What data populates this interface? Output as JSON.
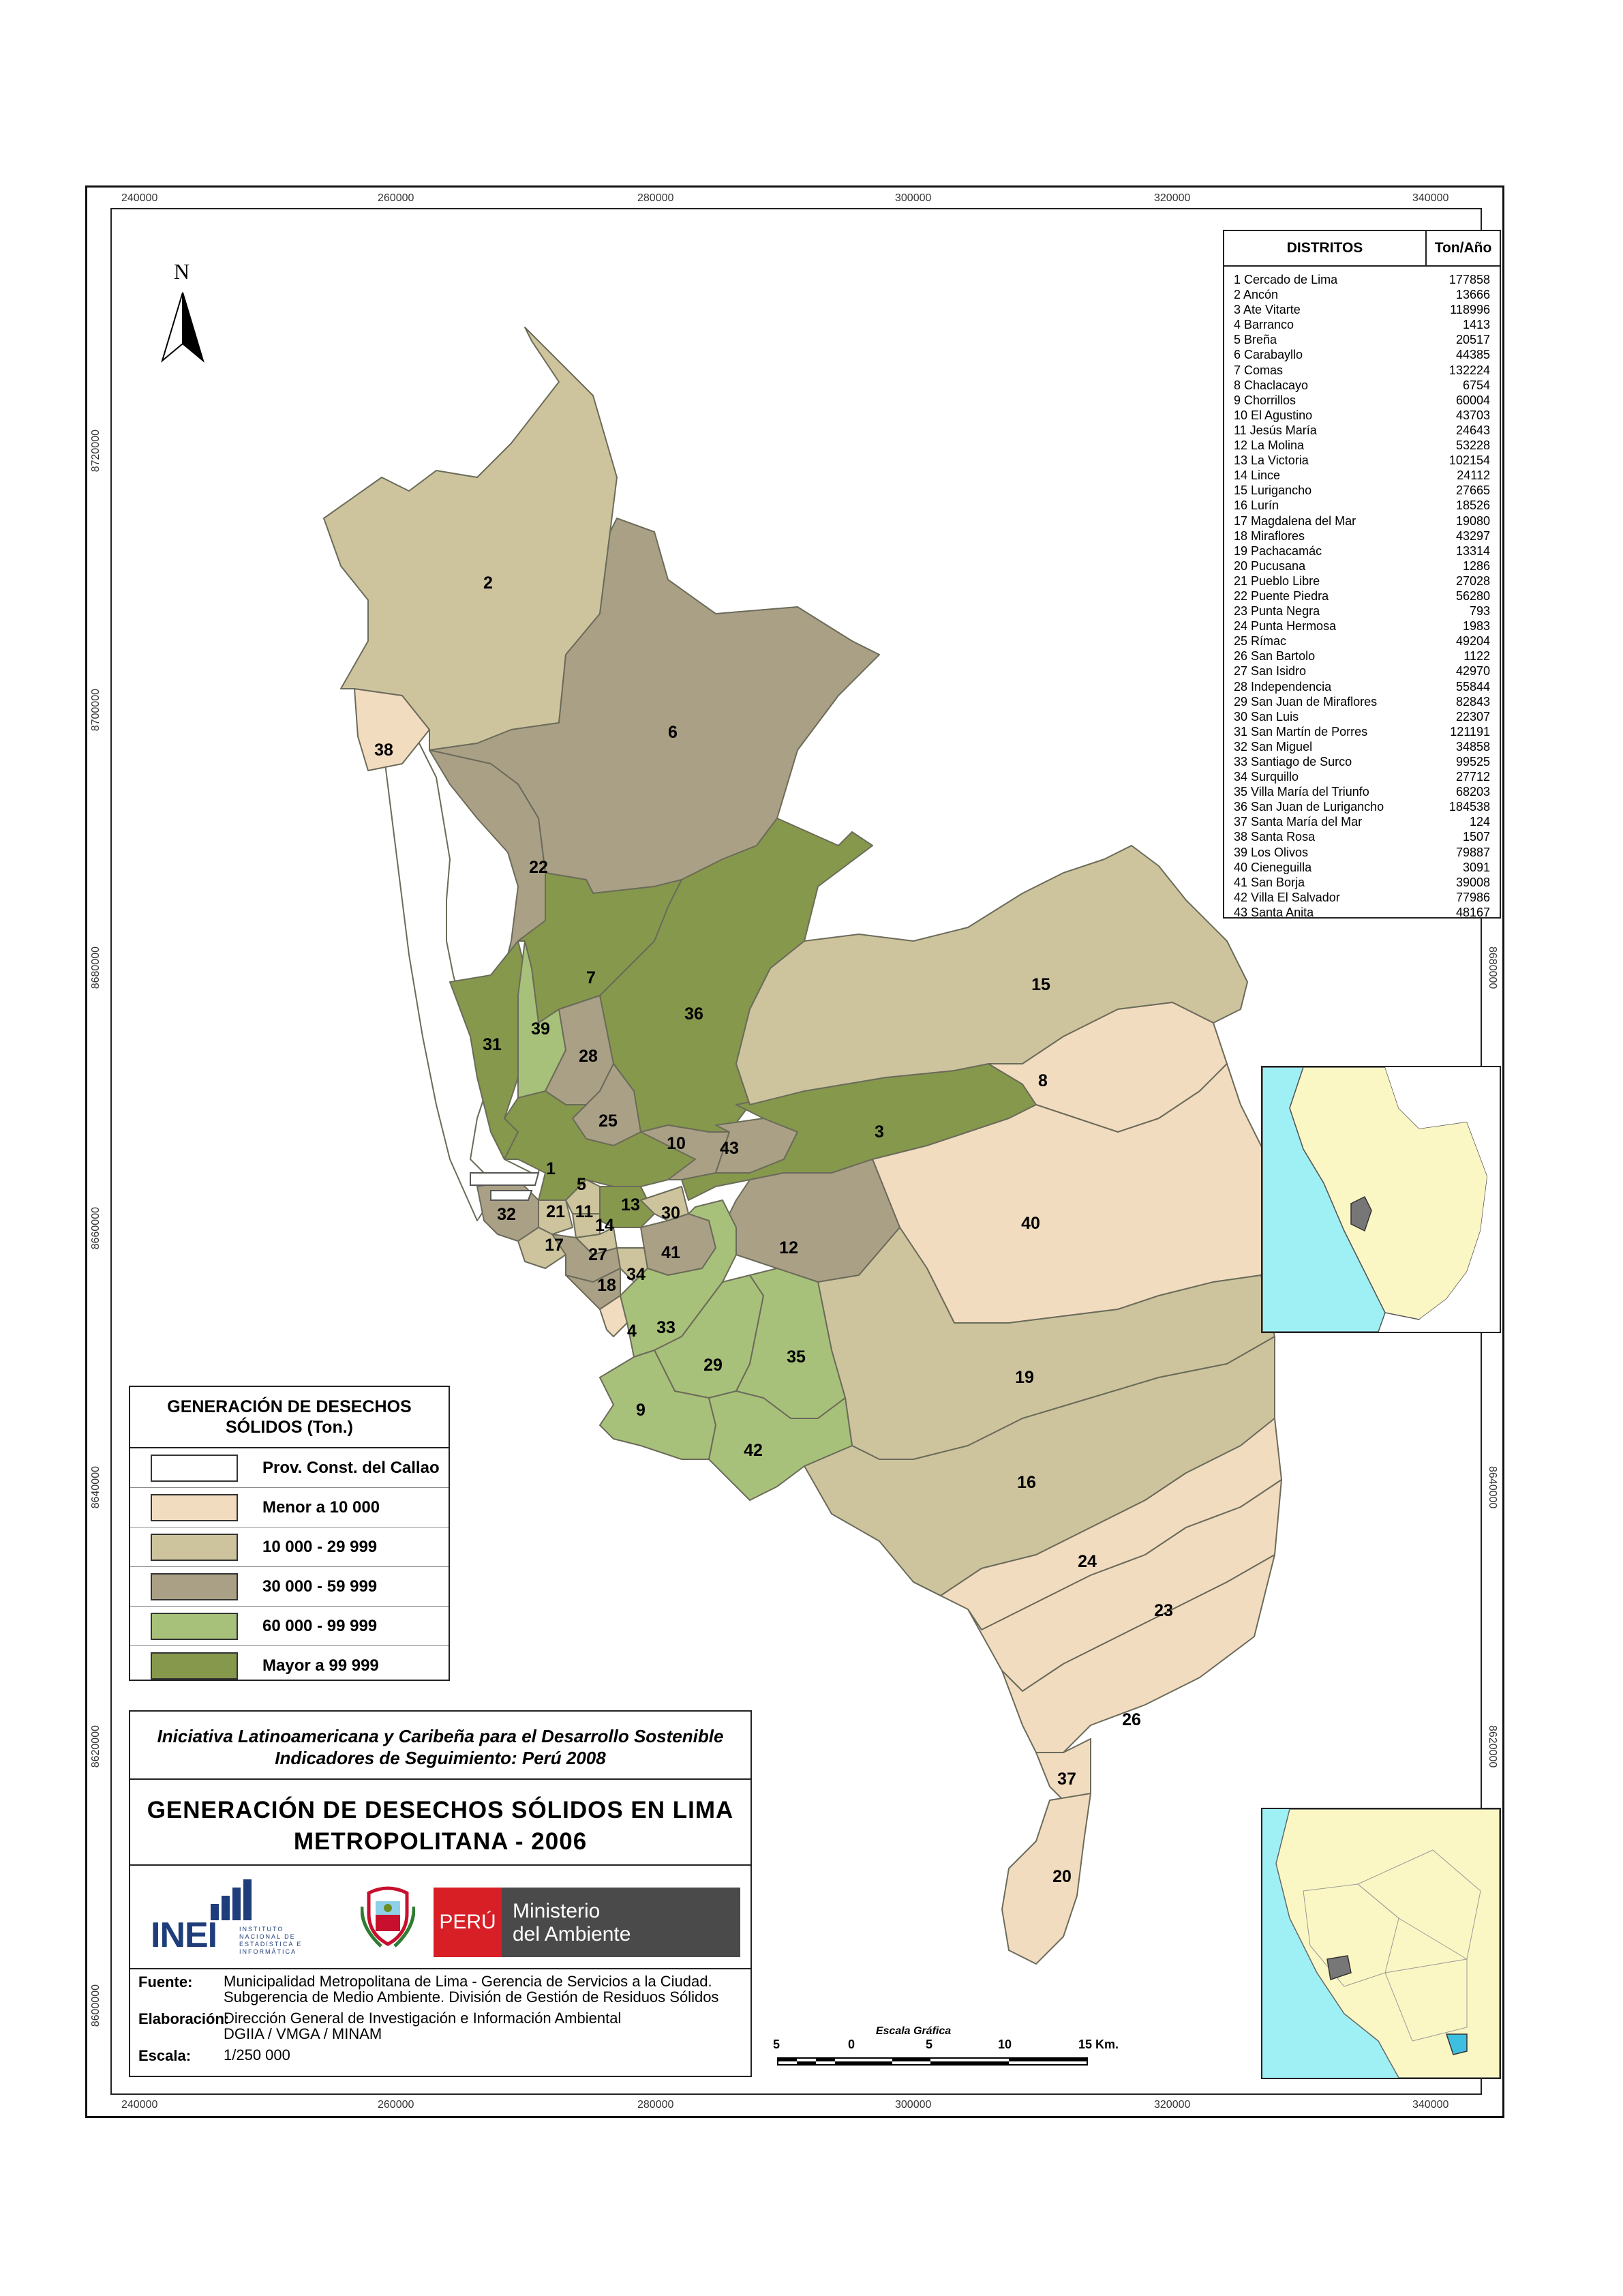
{
  "axis": {
    "x_ticks": [
      "240000",
      "260000",
      "280000",
      "300000",
      "320000",
      "340000"
    ],
    "y_ticks": [
      "8720000",
      "8700000",
      "8680000",
      "8660000",
      "8640000",
      "8620000",
      "8600000"
    ]
  },
  "north_arrow": {
    "letter": "N",
    "icon": "north-arrow-icon"
  },
  "districts_table": {
    "header_name": "DISTRITOS",
    "header_value": "Ton/Año",
    "rows": [
      {
        "name": "1 Cercado de Lima",
        "value": "177858"
      },
      {
        "name": "2 Ancón",
        "value": "13666"
      },
      {
        "name": "3 Ate Vitarte",
        "value": "118996"
      },
      {
        "name": "4 Barranco",
        "value": "1413"
      },
      {
        "name": "5 Breña",
        "value": "20517"
      },
      {
        "name": "6 Carabayllo",
        "value": "44385"
      },
      {
        "name": "7 Comas",
        "value": "132224"
      },
      {
        "name": "8 Chaclacayo",
        "value": "6754"
      },
      {
        "name": "9 Chorrillos",
        "value": "60004"
      },
      {
        "name": "10 El Agustino",
        "value": "43703"
      },
      {
        "name": "11 Jesús María",
        "value": "24643"
      },
      {
        "name": "12 La Molina",
        "value": "53228"
      },
      {
        "name": "13 La Victoria",
        "value": "102154"
      },
      {
        "name": "14 Lince",
        "value": "24112"
      },
      {
        "name": "15 Lurigancho",
        "value": "27665"
      },
      {
        "name": "16 Lurín",
        "value": "18526"
      },
      {
        "name": "17 Magdalena del Mar",
        "value": "19080"
      },
      {
        "name": "18 Miraflores",
        "value": "43297"
      },
      {
        "name": "19 Pachacamác",
        "value": "13314"
      },
      {
        "name": "20 Pucusana",
        "value": "1286"
      },
      {
        "name": "21 Pueblo Libre",
        "value": "27028"
      },
      {
        "name": "22 Puente Piedra",
        "value": "56280"
      },
      {
        "name": "23 Punta Negra",
        "value": "793"
      },
      {
        "name": "24 Punta Hermosa",
        "value": "1983"
      },
      {
        "name": "25 Rímac",
        "value": "49204"
      },
      {
        "name": "26 San Bartolo",
        "value": "1122"
      },
      {
        "name": "27 San Isidro",
        "value": "42970"
      },
      {
        "name": "28 Independencia",
        "value": "55844"
      },
      {
        "name": "29 San Juan de Miraflores",
        "value": "82843"
      },
      {
        "name": "30 San Luis",
        "value": "22307"
      },
      {
        "name": "31 San Martín de Porres",
        "value": "121191"
      },
      {
        "name": "32 San Miguel",
        "value": "34858"
      },
      {
        "name": "33 Santiago de Surco",
        "value": "99525"
      },
      {
        "name": "34 Surquillo",
        "value": "27712"
      },
      {
        "name": "35 Villa María del Triunfo",
        "value": "68203"
      },
      {
        "name": "36 San Juan de Lurigancho",
        "value": "184538"
      },
      {
        "name": "37 Santa María del Mar",
        "value": "124"
      },
      {
        "name": "38 Santa Rosa",
        "value": "1507"
      },
      {
        "name": "39 Los Olivos",
        "value": "79887"
      },
      {
        "name": "40 Cieneguilla",
        "value": "3091"
      },
      {
        "name": "41 San Borja",
        "value": "39008"
      },
      {
        "name": "42 Villa El Salvador",
        "value": "77986"
      },
      {
        "name": "43 Santa Anita",
        "value": "48167"
      }
    ]
  },
  "legend": {
    "title": "GENERACIÓN DE DESECHOS SÓLIDOS (Ton.)",
    "items": [
      {
        "label": "Prov. Const. del Callao",
        "color": "#ffffff"
      },
      {
        "label": "Menor a 10 000",
        "color": "#f2dcc0"
      },
      {
        "label": "10 000 - 29 999",
        "color": "#cdc49e"
      },
      {
        "label": "30 000 - 59 999",
        "color": "#aaa086"
      },
      {
        "label": "60 000 - 99 999",
        "color": "#a8c17a"
      },
      {
        "label": "Mayor a 99 999",
        "color": "#86984c"
      }
    ]
  },
  "title_block": {
    "initiative_line1": "Iniciativa Latinoamericana y Caribeña para el Desarrollo Sostenible",
    "initiative_line2": "Indicadores de Seguimiento: Perú 2008",
    "map_title_line1": "GENERACIÓN DE DESECHOS SÓLIDOS EN LIMA",
    "map_title_line2": "METROPOLITANA - 2006",
    "logo_inei": "INEI",
    "logo_inei_sub": "INSTITUTO NACIONAL DE ESTADÍSTICA E INFORMÁTICA",
    "logo_peru": "PERÚ",
    "logo_ministry_line1": "Ministerio",
    "logo_ministry_line2": "del Ambiente",
    "source_label": "Fuente:",
    "source_line1": "Municipalidad Metropolitana de Lima - Gerencia de Servicios a la Ciudad.",
    "source_line2": "Subgerencia de Medio Ambiente. División de Gestión de Residuos Sólidos",
    "elab_label": "Elaboración:",
    "elab_line1": "Dirección General de Investigación e Información Ambiental",
    "elab_line2": "DGIIA / VMGA / MINAM",
    "scale_label": "Escala:",
    "scale_value": "1/250 000"
  },
  "scale_bar": {
    "title": "Escala Gráfica",
    "labels": [
      "5",
      "0",
      "5",
      "10",
      "15 Km."
    ]
  },
  "district_colors": {
    "1": "#86984c",
    "2": "#cdc49e",
    "3": "#86984c",
    "4": "#f2dcc0",
    "5": "#cdc49e",
    "6": "#aaa086",
    "7": "#86984c",
    "8": "#f2dcc0",
    "9": "#a8c17a",
    "10": "#aaa086",
    "11": "#cdc49e",
    "12": "#aaa086",
    "13": "#86984c",
    "14": "#cdc49e",
    "15": "#cdc49e",
    "16": "#cdc49e",
    "17": "#cdc49e",
    "18": "#aaa086",
    "19": "#cdc49e",
    "20": "#f2dcc0",
    "21": "#cdc49e",
    "22": "#aaa086",
    "23": "#f2dcc0",
    "24": "#f2dcc0",
    "25": "#aaa086",
    "26": "#f2dcc0",
    "27": "#aaa086",
    "28": "#aaa086",
    "29": "#a8c17a",
    "30": "#cdc49e",
    "31": "#86984c",
    "32": "#aaa086",
    "33": "#a8c17a",
    "34": "#cdc49e",
    "35": "#a8c17a",
    "36": "#86984c",
    "37": "#f2dcc0",
    "38": "#f2dcc0",
    "39": "#a8c17a",
    "40": "#f2dcc0",
    "41": "#aaa086",
    "42": "#a8c17a",
    "43": "#aaa086"
  }
}
